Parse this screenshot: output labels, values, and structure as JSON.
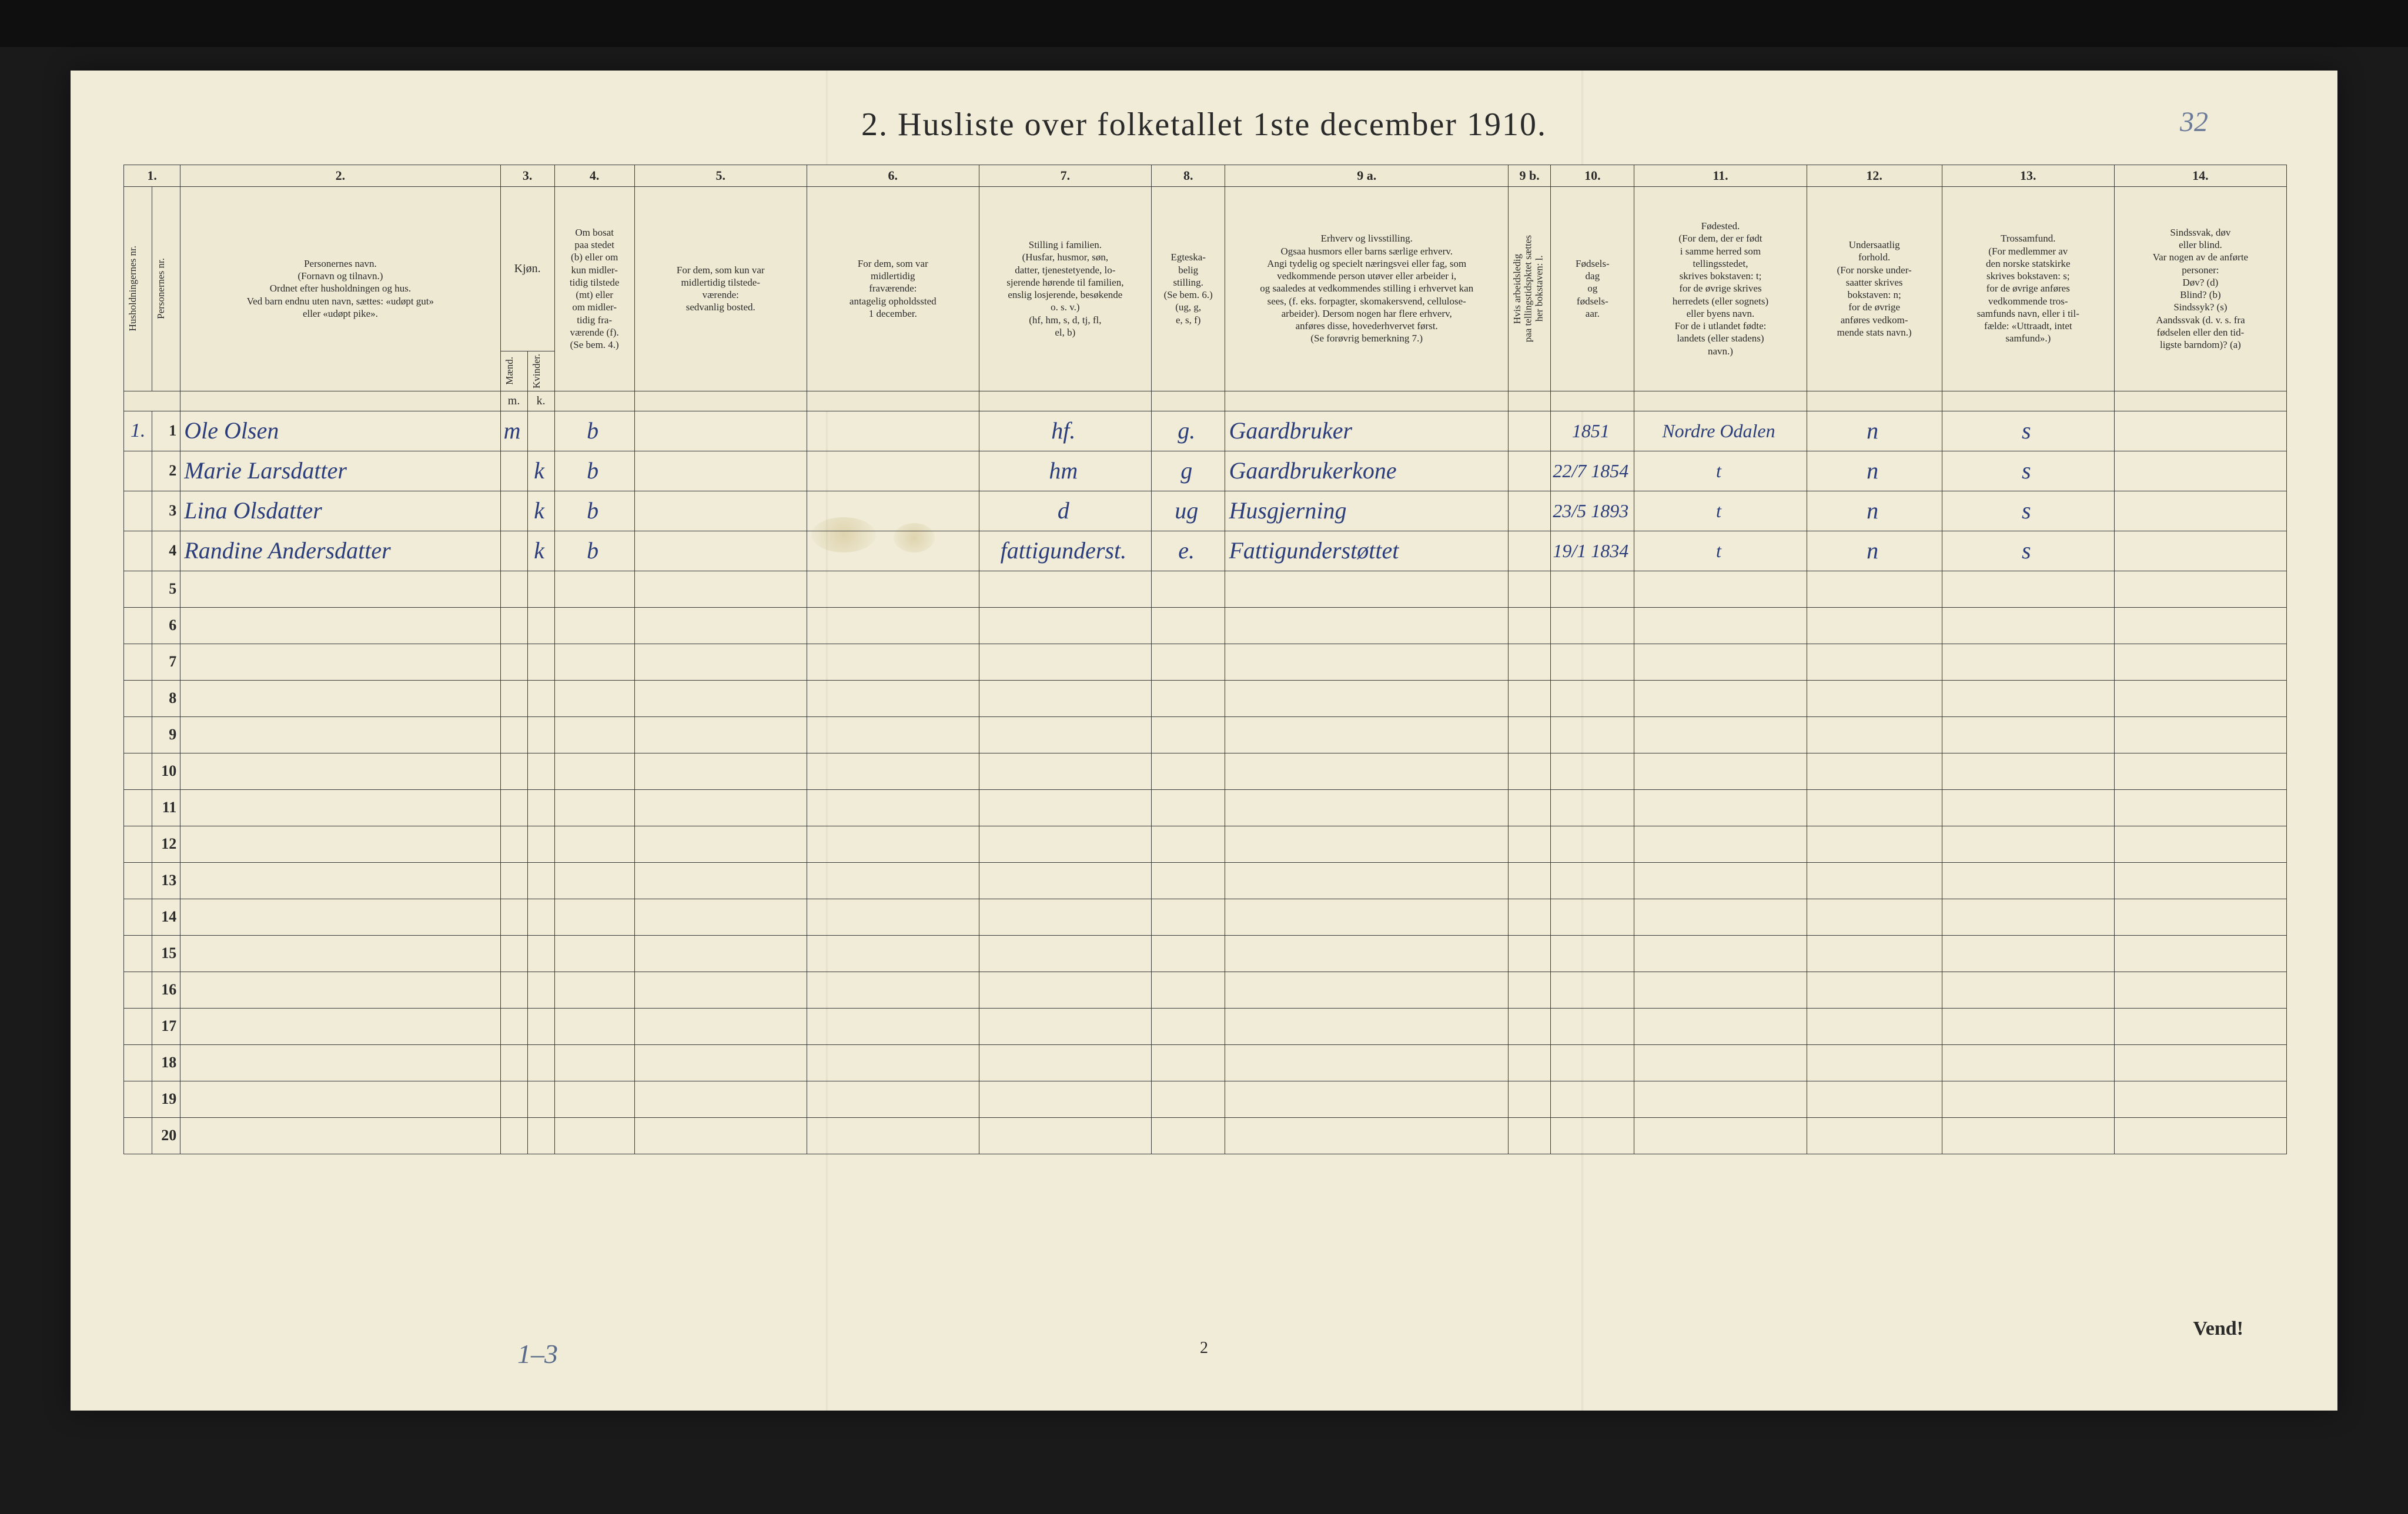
{
  "document": {
    "title": "2.  Husliste over folketallet 1ste december 1910.",
    "corner_note": "32",
    "bottom_page_number": "2",
    "vend_label": "Vend!",
    "pencil_note": "1–3"
  },
  "colors": {
    "paper": "#f0ecd8",
    "ink_print": "#2a2a2a",
    "ink_hand": "#2b3d7a",
    "ink_pencil": "#5a6b8a",
    "background": "#1a1a1a"
  },
  "column_numbers": [
    "1.",
    "2.",
    "3.",
    "4.",
    "5.",
    "6.",
    "7.",
    "8.",
    "9 a.",
    "9 b.",
    "10.",
    "11.",
    "12.",
    "13.",
    "14."
  ],
  "headers": {
    "c1a": "Husholdningernes nr.",
    "c1b": "Personernes nr.",
    "c2": "Personernes navn.\n(Fornavn og tilnavn.)\nOrdnet efter husholdningen og hus.\nVed barn endnu uten navn, sættes: «udøpt gut»\neller «udøpt pike».",
    "c3": "Kjøn.",
    "c3a": "Mænd.",
    "c3b": "Kvinder.",
    "c4": "Om bosat\npaa stedet\n(b) eller om\nkun midler-\ntidig tilstede\n(mt) eller\nom midler-\ntidig fra-\nværende (f).\n(Se bem. 4.)",
    "c5": "For dem, som kun var\nmidlertidig tilstede-\nværende:\nsedvanlig bosted.",
    "c6": "For dem, som var\nmidlertidig\nfraværende:\nantagelig opholdssted\n1 december.",
    "c7": "Stilling i familien.\n(Husfar, husmor, søn,\ndatter, tjenestetyende, lo-\nsjerende hørende til familien,\nenslig losjerende, besøkende\no. s. v.)\n(hf, hm, s, d, tj, fl,\nel, b)",
    "c8": "Egteska-\nbelig\nstilling.\n(Se bem. 6.)\n(ug, g, \ne, s, f)",
    "c9a": "Erhverv og livsstilling.\nOgsaa husmors eller barns særlige erhverv.\nAngi tydelig og specielt næringsvei eller fag, som\nvedkommende person utøver eller arbeider i,\nog saaledes at vedkommendes stilling i erhvervet kan\nsees, (f. eks. forpagter, skomakersvend, cellulose-\narbeider). Dersom nogen har flere erhverv,\nanføres disse, hovederhvervet først.\n(Se forøvrig bemerkning 7.)",
    "c9b": "Hvis arbeidsledig\npaa tellingstidspktet sættes\nher bokstaven: l.",
    "c10": "Fødsels-\ndag\nog\nfødsels-\naar.",
    "c11": "Fødested.\n(For dem, der er født\ni samme herred som\ntellingsstedet,\nskrives bokstaven: t;\nfor de øvrige skrives\nherredets (eller sognets)\neller byens navn.\nFor de i utlandet fødte:\nlandets (eller stadens)\nnavn.)",
    "c12": "Undersaatlig\nforhold.\n(For norske under-\nsaatter skrives\nbokstaven: n;\nfor de øvrige\nanføres vedkom-\nmende stats navn.)",
    "c13": "Trossamfund.\n(For medlemmer av\nden norske statskirke\nskrives bokstaven: s;\nfor de øvrige anføres\nvedkommende tros-\nsamfunds navn, eller i til-\nfælde: «Uttraadt, intet\nsamfund».)",
    "c14": "Sindssvak, døv\neller blind.\nVar nogen av de anførte\npersoner:\nDøv?        (d)\nBlind?      (b)\nSindssyk?  (s)\nAandssvak (d. v. s. fra\nfødselen eller den tid-\nligste barndom)? (a)",
    "mk_m": "m.",
    "mk_k": "k."
  },
  "rows": [
    {
      "hh": "1.",
      "pn": "1",
      "name": "Ole Olsen",
      "m": "m",
      "k": "",
      "bosat": "b",
      "c5": "",
      "c6": "",
      "c7": "hf.",
      "c8": "g.",
      "c9a": "Gaardbruker",
      "c9b": "",
      "c10": "1851",
      "c11": "Nordre Odalen",
      "c12": "n",
      "c13": "s",
      "c14": ""
    },
    {
      "hh": "",
      "pn": "2",
      "name": "Marie Larsdatter",
      "m": "",
      "k": "k",
      "bosat": "b",
      "c5": "",
      "c6": "",
      "c7": "hm",
      "c8": "g",
      "c9a": "Gaardbrukerkone",
      "c9b": "",
      "c10": "22/7 1854",
      "c11": "t",
      "c12": "n",
      "c13": "s",
      "c14": ""
    },
    {
      "hh": "",
      "pn": "3",
      "name": "Lina Olsdatter",
      "m": "",
      "k": "k",
      "bosat": "b",
      "c5": "",
      "c6": "",
      "c7": "d",
      "c8": "ug",
      "c9a": "Husgjerning",
      "c9b": "",
      "c10": "23/5 1893",
      "c11": "t",
      "c12": "n",
      "c13": "s",
      "c14": ""
    },
    {
      "hh": "",
      "pn": "4",
      "name": "Randine Andersdatter",
      "m": "",
      "k": "k",
      "bosat": "b",
      "c5": "",
      "c6": "",
      "c7": "fattigunderst.",
      "c8": "e.",
      "c9a": "Fattigunderstøttet",
      "c9b": "",
      "c10": "19/1 1834",
      "c11": "t",
      "c12": "n",
      "c13": "s",
      "c14": ""
    }
  ],
  "blank_rows": [
    "5",
    "6",
    "7",
    "8",
    "9",
    "10",
    "11",
    "12",
    "13",
    "14",
    "15",
    "16",
    "17",
    "18",
    "19",
    "20"
  ]
}
